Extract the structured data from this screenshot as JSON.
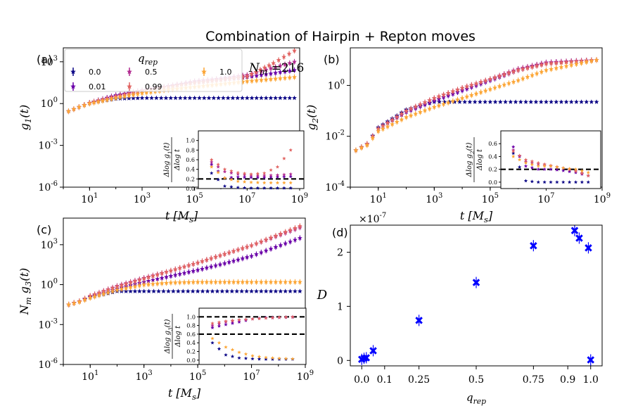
{
  "figure": {
    "title": "Combination of Hairpin + Repton moves",
    "annotation": "N_m =216"
  },
  "legend": {
    "title": "q_rep",
    "entries": [
      "0.0",
      "0.01",
      "0.5",
      "0.99",
      "1.0"
    ],
    "colors": [
      "#0d0887",
      "#6a00a8",
      "#b12a90",
      "#e16462",
      "#fca636"
    ]
  },
  "chart_data": [
    {
      "id": "a",
      "type": "scatter",
      "panel_label": "(a)",
      "xscale": "log",
      "yscale": "log",
      "xlabel": "t [M_s]",
      "ylabel": "g_1(t)",
      "xlim": [
        1,
        1000000000.0
      ],
      "ylim": [
        1e-06,
        10000.0
      ],
      "xticks": [
        "10^1",
        "10^3",
        "10^5",
        "10^7",
        "10^9"
      ],
      "yticks": [
        "10^-6",
        "10^-3",
        "10^0",
        "10^3"
      ],
      "series": [
        {
          "name": "0.0",
          "x_log10": [
            0.2,
            0.6,
            1.0,
            2.0,
            3.0,
            5.0,
            7.0,
            8.8
          ],
          "y_log10": [
            -0.55,
            -0.25,
            0.05,
            0.35,
            0.4,
            0.4,
            0.4,
            0.4
          ]
        },
        {
          "name": "0.01",
          "x_log10": [
            0.2,
            0.6,
            1.0,
            2.0,
            3.0,
            4.0,
            5.0,
            6.0,
            7.0,
            8.8
          ],
          "y_log10": [
            -0.55,
            -0.25,
            0.05,
            0.6,
            0.95,
            1.25,
            1.5,
            1.7,
            1.9,
            2.4
          ]
        },
        {
          "name": "0.5",
          "x_log10": [
            0.2,
            0.6,
            1.0,
            2.0,
            3.0,
            4.0,
            5.0,
            6.0,
            7.0,
            8.8
          ],
          "y_log10": [
            -0.55,
            -0.25,
            0.05,
            0.55,
            0.95,
            1.25,
            1.6,
            1.8,
            2.05,
            3.0
          ]
        },
        {
          "name": "0.99",
          "x_log10": [
            0.2,
            0.6,
            1.0,
            2.0,
            3.0,
            4.0,
            5.0,
            6.0,
            7.0,
            8.0,
            8.8
          ],
          "y_log10": [
            -0.55,
            -0.25,
            0.05,
            0.5,
            0.9,
            1.2,
            1.5,
            1.7,
            1.95,
            2.9,
            3.8
          ]
        },
        {
          "name": "1.0",
          "x_log10": [
            0.2,
            0.6,
            1.0,
            2.0,
            3.0,
            4.0,
            5.0,
            6.0,
            7.0,
            8.8
          ],
          "y_log10": [
            -0.55,
            -0.25,
            0.0,
            0.4,
            0.75,
            1.0,
            1.2,
            1.4,
            1.6,
            1.9
          ]
        }
      ],
      "inset": {
        "ylabel": "Δlog g_1(t) / Δlog t",
        "ylim": [
          0,
          1.2
        ],
        "yticks": [
          "0.0",
          "0.2",
          "0.4",
          "0.6",
          "0.8",
          "1.0"
        ],
        "reference_lines": [
          0.2
        ],
        "series": [
          {
            "name": "0.0",
            "x_log10": [
              5.5,
              6,
              6.5,
              7,
              7.5,
              8,
              8.5
            ],
            "y": [
              0.32,
              0.05,
              0.02,
              0.01,
              0.01,
              0.01,
              0.01
            ]
          },
          {
            "name": "0.01",
            "x_log10": [
              5.5,
              6,
              6.5,
              7,
              7.5,
              8,
              8.5
            ],
            "y": [
              0.5,
              0.22,
              0.24,
              0.23,
              0.23,
              0.24,
              0.25
            ]
          },
          {
            "name": "0.5",
            "x_log10": [
              5.5,
              6,
              6.5,
              7,
              7.5,
              8,
              8.5
            ],
            "y": [
              0.55,
              0.35,
              0.3,
              0.27,
              0.27,
              0.28,
              0.3
            ]
          },
          {
            "name": "0.99",
            "x_log10": [
              5.5,
              6,
              6.5,
              7,
              7.5,
              8,
              8.5
            ],
            "y": [
              0.6,
              0.4,
              0.33,
              0.3,
              0.32,
              0.45,
              0.8
            ]
          },
          {
            "name": "1.0",
            "x_log10": [
              5.5,
              6,
              6.5,
              7,
              7.5,
              8,
              8.5
            ],
            "y": [
              0.45,
              0.22,
              0.15,
              0.13,
              0.12,
              0.12,
              0.12
            ]
          }
        ]
      }
    },
    {
      "id": "b",
      "type": "scatter",
      "panel_label": "(b)",
      "xscale": "log",
      "yscale": "log",
      "xlabel": "t [M_s]",
      "ylabel": "g_2(t)",
      "xlim": [
        1,
        1000000000.0
      ],
      "ylim": [
        0.0001,
        30
      ],
      "xticks": [
        "10^1",
        "10^3",
        "10^5",
        "10^7",
        "10^9"
      ],
      "yticks": [
        "10^-4",
        "10^-2",
        "10^0"
      ],
      "series": [
        {
          "name": "0.0",
          "x_log10": [
            0.2,
            0.6,
            1.0,
            2.0,
            3.0,
            5.0,
            7.0,
            8.8
          ],
          "y_log10": [
            -2.55,
            -2.3,
            -1.65,
            -0.95,
            -0.65,
            -0.65,
            -0.65,
            -0.65
          ]
        },
        {
          "name": "0.01",
          "x_log10": [
            0.2,
            0.6,
            1.0,
            2.0,
            3.0,
            4.0,
            5.0,
            6.0,
            7.0,
            8.8
          ],
          "y_log10": [
            -2.55,
            -2.3,
            -1.7,
            -1.05,
            -0.6,
            -0.2,
            0.2,
            0.6,
            0.9,
            1.0
          ]
        },
        {
          "name": "0.5",
          "x_log10": [
            0.2,
            0.6,
            1.0,
            2.0,
            3.0,
            4.0,
            5.0,
            6.0,
            7.0,
            8.8
          ],
          "y_log10": [
            -2.55,
            -2.3,
            -1.7,
            -1.0,
            -0.5,
            -0.1,
            0.25,
            0.65,
            0.9,
            1.0
          ]
        },
        {
          "name": "0.99",
          "x_log10": [
            0.2,
            0.6,
            1.0,
            2.0,
            3.0,
            4.0,
            5.0,
            6.0,
            7.0,
            8.8
          ],
          "y_log10": [
            -2.55,
            -2.3,
            -1.7,
            -1.0,
            -0.5,
            -0.1,
            0.25,
            0.6,
            0.85,
            1.0
          ]
        },
        {
          "name": "1.0",
          "x_log10": [
            0.2,
            0.6,
            1.0,
            2.0,
            3.0,
            4.0,
            5.0,
            6.0,
            7.0,
            8.8
          ],
          "y_log10": [
            -2.55,
            -2.35,
            -1.8,
            -1.25,
            -0.85,
            -0.5,
            -0.15,
            0.2,
            0.6,
            1.0
          ]
        }
      ],
      "inset": {
        "ylabel": "Δlog g_2(t) / Δlog t",
        "ylim": [
          -0.1,
          0.8
        ],
        "yticks": [
          "0.0",
          "0.2",
          "0.4",
          "0.6"
        ],
        "reference_lines": [
          0.2
        ],
        "series": [
          {
            "name": "0.0",
            "x_log10": [
              5.5,
              6,
              6.5,
              7,
              7.5,
              8,
              8.5
            ],
            "y": [
              0.45,
              0.02,
              0.0,
              0.0,
              0.0,
              0.0,
              0.0
            ]
          },
          {
            "name": "0.01",
            "x_log10": [
              5.5,
              6,
              6.5,
              7,
              7.5,
              8,
              8.5
            ],
            "y": [
              0.55,
              0.25,
              0.2,
              0.2,
              0.18,
              0.15,
              0.1
            ]
          },
          {
            "name": "0.5",
            "x_log10": [
              5.5,
              6,
              6.5,
              7,
              7.5,
              8,
              8.5
            ],
            "y": [
              0.5,
              0.32,
              0.28,
              0.25,
              0.22,
              0.18,
              0.1
            ]
          },
          {
            "name": "0.99",
            "x_log10": [
              5.5,
              6,
              6.5,
              7,
              7.5,
              8,
              8.5
            ],
            "y": [
              0.48,
              0.35,
              0.3,
              0.26,
              0.22,
              0.17,
              0.1
            ]
          },
          {
            "name": "1.0",
            "x_log10": [
              5.5,
              6,
              6.5,
              7,
              7.5,
              8,
              8.5
            ],
            "y": [
              0.4,
              0.3,
              0.25,
              0.25,
              0.22,
              0.2,
              0.15
            ]
          }
        ]
      }
    },
    {
      "id": "c",
      "type": "scatter",
      "panel_label": "(c)",
      "xscale": "log",
      "yscale": "log",
      "xlabel": "t [M_s]",
      "ylabel": "N_m g_3(t)",
      "xlim": [
        1,
        1000000000.0
      ],
      "ylim": [
        1e-06,
        100000.0
      ],
      "xticks": [
        "10^1",
        "10^3",
        "10^5",
        "10^7",
        "10^9"
      ],
      "yticks": [
        "10^-6",
        "10^-3",
        "10^0",
        "10^3"
      ],
      "series": [
        {
          "name": "0.0",
          "x_log10": [
            0.2,
            0.6,
            1.0,
            2.0,
            3.0,
            5.0,
            7.0,
            8.8
          ],
          "y_log10": [
            -1.5,
            -1.25,
            -0.95,
            -0.5,
            -0.5,
            -0.5,
            -0.5,
            -0.5
          ]
        },
        {
          "name": "0.01",
          "x_log10": [
            0.2,
            0.6,
            1.0,
            2.0,
            3.0,
            4.0,
            5.0,
            6.0,
            7.0,
            8.8
          ],
          "y_log10": [
            -1.5,
            -1.25,
            -0.9,
            -0.3,
            0.2,
            0.65,
            1.1,
            1.6,
            2.15,
            3.5
          ]
        },
        {
          "name": "0.5",
          "x_log10": [
            0.2,
            0.6,
            1.0,
            2.0,
            3.0,
            4.0,
            5.0,
            6.0,
            7.0,
            8.8
          ],
          "y_log10": [
            -1.5,
            -1.25,
            -0.85,
            -0.1,
            0.5,
            1.05,
            1.65,
            2.3,
            2.95,
            4.3
          ]
        },
        {
          "name": "0.99",
          "x_log10": [
            0.2,
            0.6,
            1.0,
            2.0,
            3.0,
            4.0,
            5.0,
            6.0,
            7.0,
            8.8
          ],
          "y_log10": [
            -1.5,
            -1.25,
            -0.85,
            -0.15,
            0.45,
            1.05,
            1.65,
            2.3,
            2.95,
            4.4
          ]
        },
        {
          "name": "1.0",
          "x_log10": [
            0.2,
            0.6,
            1.0,
            2.0,
            3.0,
            4.0,
            5.0,
            6.0,
            7.0,
            8.8
          ],
          "y_log10": [
            -1.5,
            -1.3,
            -1.0,
            -0.4,
            0.0,
            0.15,
            0.2,
            0.2,
            0.2,
            0.2
          ]
        }
      ],
      "inset": {
        "ylabel": "Δlog g_3(t) / Δlog t",
        "ylim": [
          -0.1,
          1.2
        ],
        "yticks": [
          "0.0",
          "0.2",
          "0.4",
          "0.6",
          "0.8",
          "1.0"
        ],
        "reference_lines": [
          1.0,
          0.6
        ],
        "series": [
          {
            "name": "0.0",
            "x_log10": [
              5.5,
              6,
              6.5,
              7,
              7.5,
              8,
              8.5
            ],
            "y": [
              0.4,
              0.12,
              0.05,
              0.03,
              0.02,
              0.02,
              0.02
            ]
          },
          {
            "name": "0.01",
            "x_log10": [
              5.5,
              6,
              6.5,
              7,
              7.5,
              8,
              8.5
            ],
            "y": [
              0.75,
              0.82,
              0.88,
              0.95,
              0.98,
              0.99,
              1.0
            ]
          },
          {
            "name": "0.5",
            "x_log10": [
              5.5,
              6,
              6.5,
              7,
              7.5,
              8,
              8.5
            ],
            "y": [
              0.8,
              0.88,
              0.92,
              0.95,
              0.97,
              0.98,
              0.99
            ]
          },
          {
            "name": "0.99",
            "x_log10": [
              5.5,
              6,
              6.5,
              7,
              7.5,
              8,
              8.5
            ],
            "y": [
              0.85,
              0.9,
              0.93,
              0.95,
              0.97,
              0.99,
              1.0
            ]
          },
          {
            "name": "1.0",
            "x_log10": [
              5.5,
              6,
              6.5,
              7,
              7.5,
              8,
              8.5
            ],
            "y": [
              0.5,
              0.3,
              0.18,
              0.1,
              0.06,
              0.04,
              0.03
            ]
          }
        ]
      }
    },
    {
      "id": "d",
      "type": "scatter",
      "panel_label": "(d)",
      "xlabel": "q_rep",
      "ylabel": "D",
      "multiplier": "×10^-7",
      "xlim": [
        -0.05,
        1.05
      ],
      "ylim": [
        -0.1,
        2.5
      ],
      "xticks": [
        "0.0",
        "0.1",
        "0.25",
        "0.5",
        "0.75",
        "0.9",
        "1.0"
      ],
      "xtick_values": [
        0.0,
        0.1,
        0.25,
        0.5,
        0.75,
        0.9,
        1.0
      ],
      "yticks": [
        "0",
        "1",
        "2"
      ],
      "ytick_values": [
        0,
        1,
        2
      ],
      "x": [
        0.0,
        0.01,
        0.02,
        0.05,
        0.25,
        0.5,
        0.75,
        0.93,
        0.95,
        0.99,
        1.0
      ],
      "y": [
        0.02,
        0.04,
        0.05,
        0.18,
        0.74,
        1.44,
        2.12,
        2.4,
        2.26,
        2.08,
        0.01
      ],
      "color": "#0000ff"
    }
  ]
}
